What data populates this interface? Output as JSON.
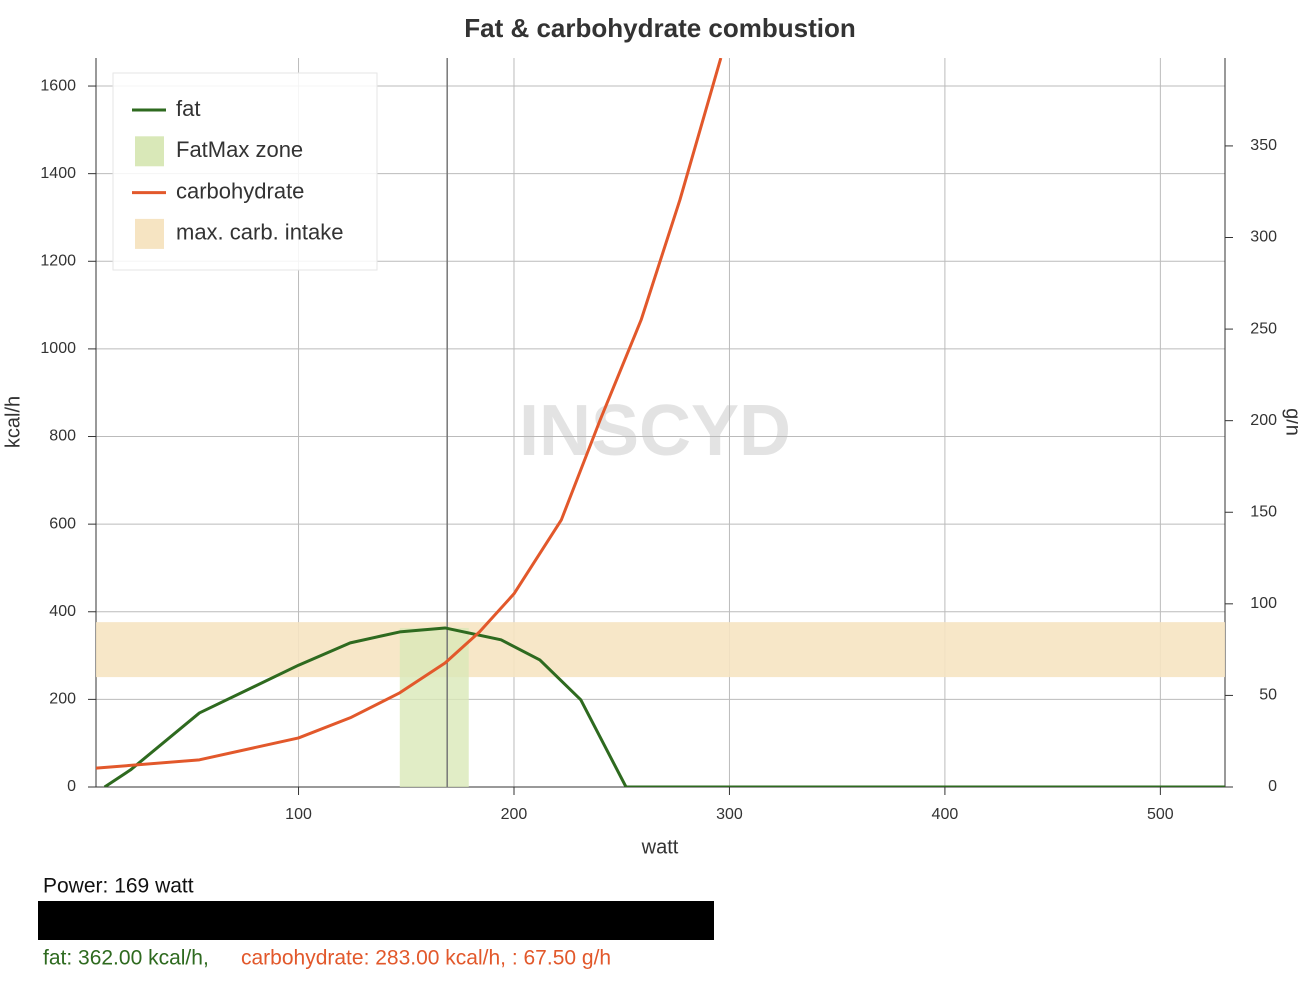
{
  "chart_data": {
    "type": "line",
    "title": "Fat & carbohydrate combustion",
    "x_label": "watt",
    "y_label": "kcal/h",
    "y2_label": "g/h",
    "watermark": "INSCYD",
    "xlim": [
      6,
      530
    ],
    "xticks": [
      100,
      200,
      300,
      400,
      500
    ],
    "ylim": [
      0,
      1664
    ],
    "yticks": [
      0,
      200,
      400,
      600,
      800,
      1000,
      1200,
      1400,
      1600
    ],
    "y2lim": [
      0,
      398
    ],
    "y2ticks": [
      0,
      50,
      100,
      150,
      200,
      250,
      300,
      350
    ],
    "grid": true,
    "legend": "top-left",
    "cursor_x": 169,
    "series": [
      {
        "name": "fat",
        "color": "#2e6a1f",
        "x": [
          10,
          22,
          54,
          100,
          124,
          147,
          168,
          194,
          212,
          231,
          252,
          530
        ],
        "values": [
          0,
          39,
          169,
          278,
          329,
          354,
          363,
          336,
          290,
          199,
          0,
          0
        ]
      },
      {
        "name": "carbohydrate",
        "color": "#e2582b",
        "x": [
          6,
          54,
          100,
          124,
          147,
          168,
          184,
          200,
          222,
          240,
          259,
          277,
          296
        ],
        "values": [
          43,
          62,
          112,
          158,
          215,
          283,
          354,
          441,
          610,
          838,
          1066,
          1340,
          1664
        ]
      }
    ],
    "fatmax_zone": {
      "name": "FatMax zone",
      "color": "#d9e8b8",
      "x": [
        147,
        179
      ]
    },
    "carb_intake": {
      "name": "max. carb. intake",
      "color": "#f6e4c2",
      "y2": [
        60,
        90
      ]
    }
  },
  "readout": {
    "power": "Power: 169 watt",
    "fat": "fat: 362.00 kcal/h,",
    "carbohydrate": "carbohydrate: 283.00 kcal/h, : 67.50 g/h"
  }
}
